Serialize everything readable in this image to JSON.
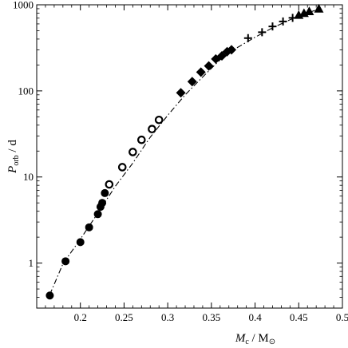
{
  "chart_data": {
    "type": "scatter",
    "x_scale": "linear",
    "y_scale": "log",
    "xlim": [
      0.15,
      0.5
    ],
    "ylim": [
      0.3,
      1000
    ],
    "xticks": [
      0.2,
      0.25,
      0.3,
      0.35,
      0.4,
      0.45,
      0.5
    ],
    "xtick_labels": [
      "0.2",
      "0.25",
      "0.3",
      "0.35",
      "0.4",
      "0.45",
      "0.5"
    ],
    "yticks": [
      1,
      10,
      100,
      1000
    ],
    "ytick_labels": [
      "1",
      "10",
      "100",
      "1000"
    ],
    "xlabel": {
      "main": "M",
      "sub": "c",
      "rest": " / M",
      "symbol": "⊙"
    },
    "ylabel": {
      "main": "P",
      "sub": "orb",
      "rest": " / d"
    },
    "grid": false,
    "fit_line": {
      "style": "dash-dot",
      "x": [
        0.165,
        0.18,
        0.2,
        0.22,
        0.24,
        0.26,
        0.28,
        0.3,
        0.32,
        0.34,
        0.36,
        0.38,
        0.4,
        0.42,
        0.44,
        0.46,
        0.475
      ],
      "y": [
        0.43,
        0.98,
        1.9,
        3.8,
        7.8,
        14.5,
        29,
        52,
        90,
        145,
        230,
        320,
        420,
        540,
        670,
        800,
        910
      ]
    },
    "series": [
      {
        "marker": "filled-circle",
        "x": [
          0.165,
          0.183,
          0.2,
          0.21,
          0.22,
          0.223,
          0.225,
          0.228
        ],
        "y": [
          0.42,
          1.05,
          1.75,
          2.6,
          3.7,
          4.5,
          5.0,
          6.5
        ]
      },
      {
        "marker": "open-circle",
        "x": [
          0.233,
          0.248,
          0.26,
          0.27,
          0.282,
          0.29
        ],
        "y": [
          8.2,
          13,
          19.5,
          27,
          36,
          46
        ]
      },
      {
        "marker": "filled-diamond",
        "x": [
          0.315,
          0.328,
          0.338,
          0.347,
          0.355,
          0.362,
          0.368,
          0.373
        ],
        "y": [
          95,
          128,
          165,
          195,
          235,
          255,
          285,
          300
        ]
      },
      {
        "marker": "plus",
        "x": [
          0.392,
          0.408,
          0.42,
          0.432,
          0.443
        ],
        "y": [
          410,
          480,
          560,
          640,
          705
        ]
      },
      {
        "marker": "filled-triangle",
        "x": [
          0.45,
          0.456,
          0.462,
          0.473
        ],
        "y": [
          760,
          800,
          840,
          900
        ]
      }
    ]
  }
}
